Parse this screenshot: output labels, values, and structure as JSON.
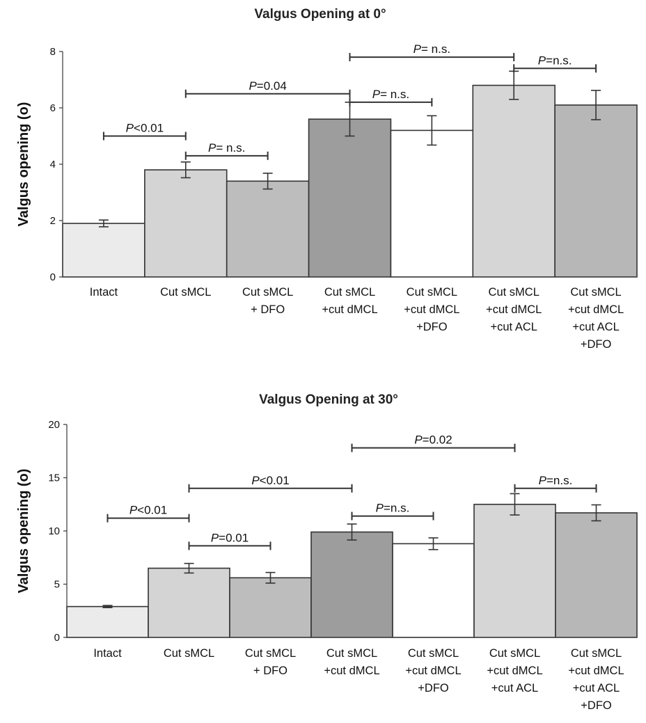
{
  "colors": {
    "bar_fills": [
      "#ebebeb",
      "#d4d4d4",
      "#bdbdbd",
      "#9d9d9d",
      "#ffffff",
      "#d6d6d6",
      "#b7b7b7"
    ],
    "stroke": "#333333"
  },
  "chart_data": [
    {
      "type": "bar",
      "title": "Valgus Opening at 0°",
      "ylabel": "Valgus opening (o)",
      "xlabel": "",
      "ylim": [
        0,
        8
      ],
      "yticks": [
        "0",
        "2",
        "4",
        "6",
        "8"
      ],
      "grid": false,
      "categories": [
        [
          "Intact"
        ],
        [
          "Cut sMCL"
        ],
        [
          "Cut sMCL",
          "+ DFO"
        ],
        [
          "Cut sMCL",
          "+cut dMCL"
        ],
        [
          "Cut sMCL",
          "+cut dMCL",
          "+DFO"
        ],
        [
          "Cut sMCL",
          "+cut dMCL",
          "+cut ACL"
        ],
        [
          "Cut sMCL",
          "+cut dMCL",
          "+cut ACL",
          "+DFO"
        ]
      ],
      "values": [
        1.9,
        3.8,
        3.4,
        5.6,
        5.2,
        6.8,
        6.1
      ],
      "errors": [
        0.12,
        0.28,
        0.28,
        0.6,
        0.52,
        0.5,
        0.52
      ],
      "comparisons": [
        {
          "from": 0,
          "to": 1,
          "level": 5.0,
          "p_symbol": "P",
          "rest": "<0.01"
        },
        {
          "from": 1,
          "to": 2,
          "level": 4.3,
          "p_symbol": "P",
          "rest": "= n.s."
        },
        {
          "from": 1,
          "to": 3,
          "level": 6.5,
          "p_symbol": "P",
          "rest": "=0.04"
        },
        {
          "from": 3,
          "to": 4,
          "level": 6.2,
          "p_symbol": "P",
          "rest": "= n.s."
        },
        {
          "from": 3,
          "to": 5,
          "level": 7.8,
          "p_symbol": "P",
          "rest": "= n.s."
        },
        {
          "from": 5,
          "to": 6,
          "level": 7.4,
          "p_symbol": "P",
          "rest": "=n.s."
        }
      ]
    },
    {
      "type": "bar",
      "title": "Valgus Opening at 30°",
      "ylabel": "Valgus opening (o)",
      "xlabel": "",
      "ylim": [
        0,
        20
      ],
      "yticks": [
        "0",
        "5",
        "10",
        "15",
        "20"
      ],
      "grid": false,
      "categories": [
        [
          "Intact"
        ],
        [
          "Cut sMCL"
        ],
        [
          "Cut sMCL",
          "+ DFO"
        ],
        [
          "Cut sMCL",
          "+cut dMCL"
        ],
        [
          "Cut sMCL",
          "+cut dMCL",
          "+DFO"
        ],
        [
          "Cut sMCL",
          "+cut dMCL",
          "+cut ACL"
        ],
        [
          "Cut sMCL",
          "+cut dMCL",
          "+cut ACL",
          "+DFO"
        ]
      ],
      "values": [
        2.9,
        6.5,
        5.6,
        9.9,
        8.8,
        12.5,
        11.7
      ],
      "errors": [
        0.1,
        0.45,
        0.5,
        0.75,
        0.55,
        1.0,
        0.75
      ],
      "comparisons": [
        {
          "from": 0,
          "to": 1,
          "level": 11.2,
          "p_symbol": "P",
          "rest": "<0.01"
        },
        {
          "from": 1,
          "to": 2,
          "level": 8.6,
          "p_symbol": "P",
          "rest": "=0.01"
        },
        {
          "from": 1,
          "to": 3,
          "level": 14.0,
          "p_symbol": "P",
          "rest": "<0.01"
        },
        {
          "from": 3,
          "to": 4,
          "level": 11.4,
          "p_symbol": "P",
          "rest": "=n.s."
        },
        {
          "from": 3,
          "to": 5,
          "level": 17.8,
          "p_symbol": "P",
          "rest": "=0.02"
        },
        {
          "from": 5,
          "to": 6,
          "level": 14.0,
          "p_symbol": "P",
          "rest": "=n.s."
        }
      ]
    }
  ]
}
